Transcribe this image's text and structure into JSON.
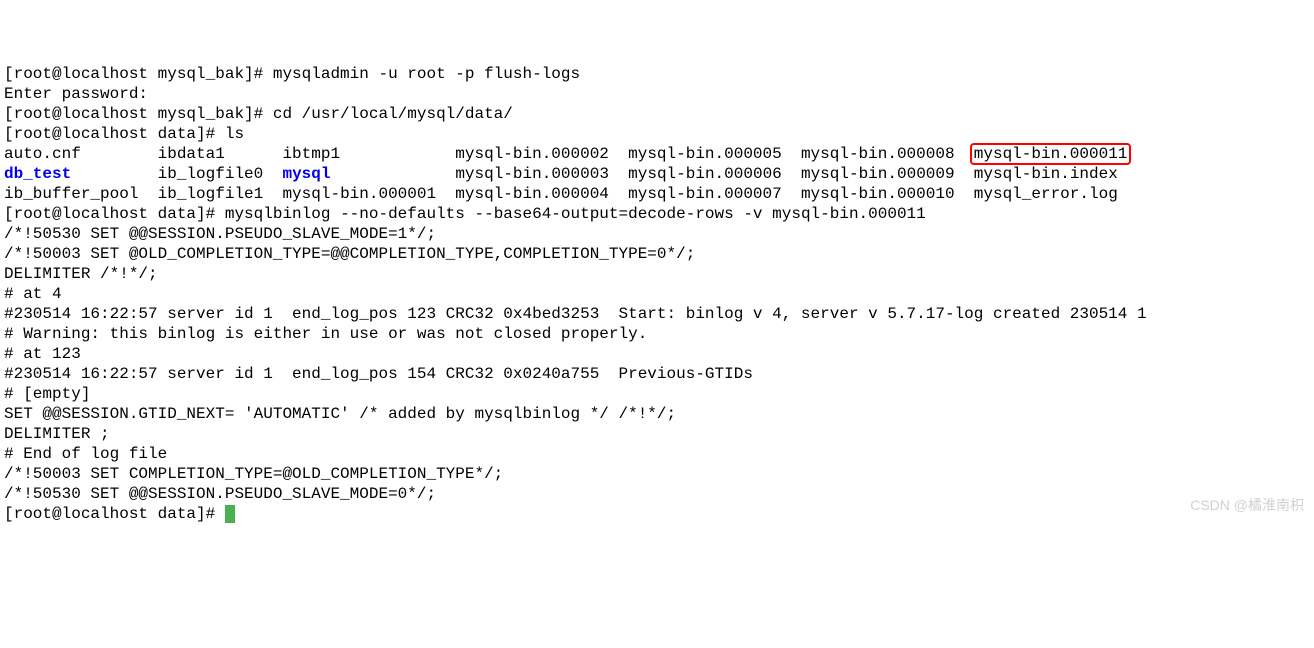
{
  "lines": {
    "l1_prompt": "[root@localhost mysql_bak]# ",
    "l1_cmd": "mysqladmin -u root -p flush-logs",
    "l2": "Enter password:",
    "l3_prompt": "[root@localhost mysql_bak]# ",
    "l3_cmd": "cd /usr/local/mysql/data/",
    "l4_prompt": "[root@localhost data]# ",
    "l4_cmd": "ls",
    "ls": {
      "r1c1": "auto.cnf",
      "r1c2": "ibdata1",
      "r1c3": "ibtmp1",
      "r1c4": "mysql-bin.000002",
      "r1c5": "mysql-bin.000005",
      "r1c6": "mysql-bin.000008",
      "r1c7": "mysql-bin.000011",
      "r2c1": "db_test",
      "r2c2": "ib_logfile0",
      "r2c3": "mysql",
      "r2c4": "mysql-bin.000003",
      "r2c5": "mysql-bin.000006",
      "r2c6": "mysql-bin.000009",
      "r2c7": "mysql-bin.index",
      "r3c1": "ib_buffer_pool",
      "r3c2": "ib_logfile1",
      "r3c3": "mysql-bin.000001",
      "r3c4": "mysql-bin.000004",
      "r3c5": "mysql-bin.000007",
      "r3c6": "mysql-bin.000010",
      "r3c7": "mysql_error.log"
    },
    "l8_prompt": "[root@localhost data]# ",
    "l8_cmd": "mysqlbinlog --no-defaults --base64-output=decode-rows -v mysql-bin.000011",
    "l9": "/*!50530 SET @@SESSION.PSEUDO_SLAVE_MODE=1*/;",
    "l10": "/*!50003 SET @OLD_COMPLETION_TYPE=@@COMPLETION_TYPE,COMPLETION_TYPE=0*/;",
    "l11": "DELIMITER /*!*/;",
    "l12": "# at 4",
    "l13": "#230514 16:22:57 server id 1  end_log_pos 123 CRC32 0x4bed3253  Start: binlog v 4, server v 5.7.17-log created 230514 1",
    "l14": "# Warning: this binlog is either in use or was not closed properly.",
    "l15": "# at 123",
    "l16": "#230514 16:22:57 server id 1  end_log_pos 154 CRC32 0x0240a755  Previous-GTIDs",
    "l17": "# [empty]",
    "l18": "SET @@SESSION.GTID_NEXT= 'AUTOMATIC' /* added by mysqlbinlog */ /*!*/;",
    "l19": "DELIMITER ;",
    "l20": "# End of log file",
    "l21": "/*!50003 SET COMPLETION_TYPE=@OLD_COMPLETION_TYPE*/;",
    "l22": "/*!50530 SET @@SESSION.PSEUDO_SLAVE_MODE=0*/;",
    "l23_prompt": "[root@localhost data]# "
  },
  "colors": {
    "dir_blue": "#0000ee",
    "highlight_red": "#ff0000",
    "cursor_green": "#4caf50"
  },
  "watermark": "CSDN @橘淮南枳"
}
